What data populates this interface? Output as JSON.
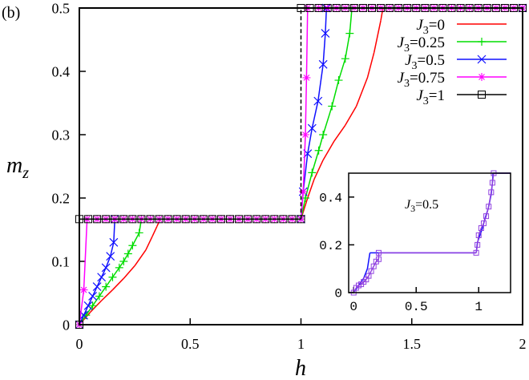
{
  "panel_label": "(b)",
  "chart_data": [
    {
      "type": "line",
      "xlabel": "h",
      "ylabel": "m",
      "ylabel_sub": "z",
      "xlim": [
        0,
        2
      ],
      "ylim": [
        0,
        0.5
      ],
      "xticks": [
        "0",
        "0.5",
        "1",
        "1.5",
        "2"
      ],
      "xtick_values": [
        0,
        0.5,
        1,
        1.5,
        2
      ],
      "yticks": [
        "0",
        "0.1",
        "0.2",
        "0.3",
        "0.4",
        "0.5"
      ],
      "ytick_values": [
        0,
        0.1,
        0.2,
        0.3,
        0.4,
        0.5
      ],
      "grid": false,
      "legend_placement": "top-right",
      "series": [
        {
          "name": "J3=0",
          "label_main": "J",
          "label_sub": "3",
          "label_val": "=0",
          "color": "#ff0000",
          "marker": "none",
          "points": [
            [
              0,
              0
            ],
            [
              0.05,
              0.02
            ],
            [
              0.1,
              0.038
            ],
            [
              0.15,
              0.055
            ],
            [
              0.2,
              0.073
            ],
            [
              0.25,
              0.093
            ],
            [
              0.3,
              0.118
            ],
            [
              0.33,
              0.14
            ],
            [
              0.35,
              0.155
            ],
            [
              0.365,
              0.1667
            ],
            [
              1,
              0.1667
            ],
            [
              1.03,
              0.2
            ],
            [
              1.06,
              0.23
            ],
            [
              1.1,
              0.26
            ],
            [
              1.15,
              0.29
            ],
            [
              1.2,
              0.315
            ],
            [
              1.25,
              0.345
            ],
            [
              1.3,
              0.39
            ],
            [
              1.33,
              0.43
            ],
            [
              1.36,
              0.48
            ],
            [
              1.37,
              0.5
            ],
            [
              2,
              0.5
            ]
          ]
        },
        {
          "name": "J3=0.25",
          "label_main": "J",
          "label_sub": "3",
          "label_val": "=0.25",
          "color": "#00dd00",
          "marker": "plus",
          "points": [
            [
              0,
              0
            ],
            [
              0.03,
              0.015
            ],
            [
              0.06,
              0.03
            ],
            [
              0.09,
              0.045
            ],
            [
              0.12,
              0.06
            ],
            [
              0.15,
              0.075
            ],
            [
              0.18,
              0.09
            ],
            [
              0.2,
              0.1
            ],
            [
              0.22,
              0.112
            ],
            [
              0.24,
              0.125
            ],
            [
              0.27,
              0.145
            ],
            [
              0.28,
              0.1667
            ],
            [
              1,
              0.1667
            ],
            [
              1.02,
              0.2
            ],
            [
              1.05,
              0.24
            ],
            [
              1.08,
              0.275
            ],
            [
              1.1,
              0.3
            ],
            [
              1.14,
              0.345
            ],
            [
              1.17,
              0.386
            ],
            [
              1.2,
              0.42
            ],
            [
              1.22,
              0.46
            ],
            [
              1.23,
              0.5
            ],
            [
              2,
              0.5
            ]
          ]
        },
        {
          "name": "J3=0.5",
          "label_main": "J",
          "label_sub": "3",
          "label_val": "=0.5",
          "color": "#1010ff",
          "marker": "cross",
          "points": [
            [
              0,
              0
            ],
            [
              0.02,
              0.015
            ],
            [
              0.04,
              0.03
            ],
            [
              0.06,
              0.045
            ],
            [
              0.08,
              0.06
            ],
            [
              0.1,
              0.075
            ],
            [
              0.12,
              0.09
            ],
            [
              0.14,
              0.108
            ],
            [
              0.155,
              0.13
            ],
            [
              0.16,
              0.1667
            ],
            [
              1,
              0.1667
            ],
            [
              1.01,
              0.21
            ],
            [
              1.03,
              0.27
            ],
            [
              1.05,
              0.31
            ],
            [
              1.077,
              0.353
            ],
            [
              1.1,
              0.411
            ],
            [
              1.11,
              0.46
            ],
            [
              1.115,
              0.5
            ],
            [
              2,
              0.5
            ]
          ]
        },
        {
          "name": "J3=0.75",
          "label_main": "J",
          "label_sub": "3",
          "label_val": "=0.75",
          "color": "#ff00ff",
          "marker": "star",
          "points": [
            [
              0,
              0
            ],
            [
              0.02,
              0.055
            ],
            [
              0.035,
              0.1667
            ],
            [
              0.08,
              0.1667
            ],
            [
              0.12,
              0.1667
            ],
            [
              0.16,
              0.1667
            ],
            [
              0.2,
              0.1667
            ],
            [
              0.24,
              0.1667
            ],
            [
              0.28,
              0.1667
            ],
            [
              0.32,
              0.1667
            ],
            [
              0.36,
              0.1667
            ],
            [
              0.4,
              0.1667
            ],
            [
              0.44,
              0.1667
            ],
            [
              0.48,
              0.1667
            ],
            [
              0.52,
              0.1667
            ],
            [
              0.56,
              0.1667
            ],
            [
              0.6,
              0.1667
            ],
            [
              0.64,
              0.1667
            ],
            [
              0.68,
              0.1667
            ],
            [
              0.72,
              0.1667
            ],
            [
              0.76,
              0.1667
            ],
            [
              0.8,
              0.1667
            ],
            [
              0.84,
              0.1667
            ],
            [
              0.88,
              0.1667
            ],
            [
              0.92,
              0.1667
            ],
            [
              0.96,
              0.1667
            ],
            [
              1,
              0.1667
            ],
            [
              1.01,
              0.21
            ],
            [
              1.02,
              0.3
            ],
            [
              1.025,
              0.39
            ],
            [
              1.03,
              0.5
            ],
            [
              1.08,
              0.5
            ],
            [
              1.12,
              0.5
            ],
            [
              1.16,
              0.5
            ],
            [
              1.2,
              0.5
            ],
            [
              1.24,
              0.5
            ],
            [
              1.28,
              0.5
            ],
            [
              1.32,
              0.5
            ],
            [
              1.36,
              0.5
            ],
            [
              1.4,
              0.5
            ],
            [
              1.44,
              0.5
            ],
            [
              1.48,
              0.5
            ],
            [
              1.52,
              0.5
            ],
            [
              1.56,
              0.5
            ],
            [
              1.6,
              0.5
            ],
            [
              1.64,
              0.5
            ],
            [
              1.68,
              0.5
            ],
            [
              1.72,
              0.5
            ],
            [
              1.76,
              0.5
            ],
            [
              1.8,
              0.5
            ],
            [
              1.84,
              0.5
            ],
            [
              1.88,
              0.5
            ],
            [
              1.92,
              0.5
            ],
            [
              1.96,
              0.5
            ],
            [
              2,
              0.5
            ]
          ]
        },
        {
          "name": "J3=1",
          "label_main": "J",
          "label_sub": "3",
          "label_val": "=1",
          "color": "#000000",
          "marker": "square",
          "points": [
            [
              0,
              0
            ],
            [
              0,
              0.1667
            ],
            [
              0.04,
              0.1667
            ],
            [
              0.08,
              0.1667
            ],
            [
              0.12,
              0.1667
            ],
            [
              0.16,
              0.1667
            ],
            [
              0.2,
              0.1667
            ],
            [
              0.24,
              0.1667
            ],
            [
              0.28,
              0.1667
            ],
            [
              0.32,
              0.1667
            ],
            [
              0.36,
              0.1667
            ],
            [
              0.4,
              0.1667
            ],
            [
              0.44,
              0.1667
            ],
            [
              0.48,
              0.1667
            ],
            [
              0.52,
              0.1667
            ],
            [
              0.56,
              0.1667
            ],
            [
              0.6,
              0.1667
            ],
            [
              0.64,
              0.1667
            ],
            [
              0.68,
              0.1667
            ],
            [
              0.72,
              0.1667
            ],
            [
              0.76,
              0.1667
            ],
            [
              0.8,
              0.1667
            ],
            [
              0.84,
              0.1667
            ],
            [
              0.88,
              0.1667
            ],
            [
              0.92,
              0.1667
            ],
            [
              0.96,
              0.1667
            ],
            [
              1,
              0.1667
            ],
            [
              1,
              0.5
            ],
            [
              1.04,
              0.5
            ],
            [
              1.08,
              0.5
            ],
            [
              1.12,
              0.5
            ],
            [
              1.16,
              0.5
            ],
            [
              1.2,
              0.5
            ],
            [
              1.24,
              0.5
            ],
            [
              1.28,
              0.5
            ],
            [
              1.32,
              0.5
            ],
            [
              1.36,
              0.5
            ],
            [
              1.4,
              0.5
            ],
            [
              1.44,
              0.5
            ],
            [
              1.48,
              0.5
            ],
            [
              1.52,
              0.5
            ],
            [
              1.56,
              0.5
            ],
            [
              1.6,
              0.5
            ],
            [
              1.64,
              0.5
            ],
            [
              1.68,
              0.5
            ],
            [
              1.72,
              0.5
            ],
            [
              1.76,
              0.5
            ],
            [
              1.8,
              0.5
            ],
            [
              1.84,
              0.5
            ],
            [
              1.88,
              0.5
            ],
            [
              1.92,
              0.5
            ],
            [
              1.96,
              0.5
            ],
            [
              2,
              0.5
            ]
          ]
        }
      ]
    },
    {
      "type": "line",
      "annotation_main": "J",
      "annotation_sub": "3",
      "annotation_val": "=0.5",
      "xlim": [
        -0.04,
        1.255
      ],
      "ylim": [
        0,
        0.5
      ],
      "xticks": [
        "0",
        "0.5",
        "1"
      ],
      "xtick_values": [
        0,
        0.5,
        1
      ],
      "yticks": [
        "0",
        "0.2",
        "0.4"
      ],
      "ytick_values": [
        0,
        0.2,
        0.4
      ],
      "series": [
        {
          "color": "#1010ff",
          "marker": "none",
          "points": [
            [
              0,
              0
            ],
            [
              0.04,
              0.03
            ],
            [
              0.08,
              0.06
            ],
            [
              0.11,
              0.1
            ],
            [
              0.13,
              0.1667
            ],
            [
              0.98,
              0.1667
            ],
            [
              0.99,
              0.21
            ],
            [
              1.03,
              0.27
            ],
            [
              1.05,
              0.31
            ],
            [
              1.077,
              0.353
            ],
            [
              1.1,
              0.411
            ],
            [
              1.11,
              0.46
            ],
            [
              1.115,
              0.5
            ],
            [
              1.255,
              0.5
            ]
          ]
        },
        {
          "color": "#9040e0",
          "marker": "square-small",
          "points": [
            [
              0,
              0
            ],
            [
              0.02,
              0.02
            ],
            [
              0.04,
              0.03
            ],
            [
              0.06,
              0.035
            ],
            [
              0.08,
              0.045
            ],
            [
              0.1,
              0.055
            ],
            [
              0.12,
              0.07
            ],
            [
              0.14,
              0.09
            ],
            [
              0.16,
              0.11
            ],
            [
              0.18,
              0.13
            ],
            [
              0.2,
              0.14
            ],
            [
              0.2,
              0.1667
            ],
            [
              0.98,
              0.1667
            ],
            [
              0.99,
              0.2
            ],
            [
              1.0,
              0.24
            ],
            [
              1.02,
              0.27
            ],
            [
              1.04,
              0.29
            ],
            [
              1.06,
              0.32
            ],
            [
              1.08,
              0.36
            ],
            [
              1.1,
              0.42
            ],
            [
              1.11,
              0.46
            ],
            [
              1.12,
              0.5
            ],
            [
              1.255,
              0.5
            ]
          ]
        }
      ]
    }
  ]
}
